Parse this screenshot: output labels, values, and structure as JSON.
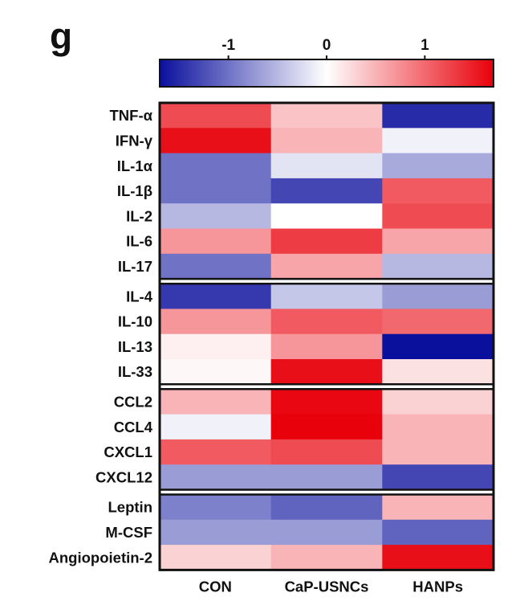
{
  "panel_label": "g",
  "colors": {
    "low": "#0a0f9c",
    "mid": "#ffffff",
    "high": "#e8000a"
  },
  "chart_data": {
    "type": "heatmap",
    "title": "",
    "colorbar": {
      "min": -1.7,
      "max": 1.7,
      "ticks": [
        -1,
        0,
        1
      ]
    },
    "columns": [
      "CON",
      "CaP-USNCs",
      "HANPs"
    ],
    "groups": [
      [
        "TNF-α",
        "IFN-γ",
        "IL-1α",
        "IL-1β",
        "IL-2",
        "IL-6",
        "IL-17"
      ],
      [
        "IL-4",
        "IL-10",
        "IL-13",
        "IL-33"
      ],
      [
        "CCL2",
        "CCL4",
        "CXCL1",
        "CXCL12"
      ],
      [
        "Leptin",
        "M-CSF",
        "Angiopoietin-2"
      ]
    ],
    "rows": [
      "TNF-α",
      "IFN-γ",
      "IL-1α",
      "IL-1β",
      "IL-2",
      "IL-6",
      "IL-17",
      "IL-4",
      "IL-10",
      "IL-13",
      "IL-33",
      "CCL2",
      "CCL4",
      "CXCL1",
      "CXCL12",
      "Leptin",
      "M-CSF",
      "Angiopoietin-2"
    ],
    "values": [
      [
        1.2,
        0.4,
        -1.5
      ],
      [
        1.6,
        0.5,
        -0.1
      ],
      [
        -1.0,
        -0.2,
        -0.6
      ],
      [
        -1.0,
        -1.3,
        1.1
      ],
      [
        -0.5,
        0.0,
        1.2
      ],
      [
        0.7,
        1.3,
        0.6
      ],
      [
        -1.0,
        0.6,
        -0.5
      ],
      [
        -1.4,
        -0.4,
        -0.7
      ],
      [
        0.7,
        1.1,
        1.0
      ],
      [
        0.1,
        0.7,
        -1.7
      ],
      [
        0.05,
        1.6,
        0.2
      ],
      [
        0.5,
        1.65,
        0.3
      ],
      [
        -0.1,
        1.7,
        0.5
      ],
      [
        1.1,
        1.2,
        0.5
      ],
      [
        -0.7,
        -0.7,
        -1.3
      ],
      [
        -0.9,
        -1.1,
        0.5
      ],
      [
        -0.7,
        -0.7,
        -1.1
      ],
      [
        0.3,
        0.5,
        1.6
      ]
    ]
  }
}
